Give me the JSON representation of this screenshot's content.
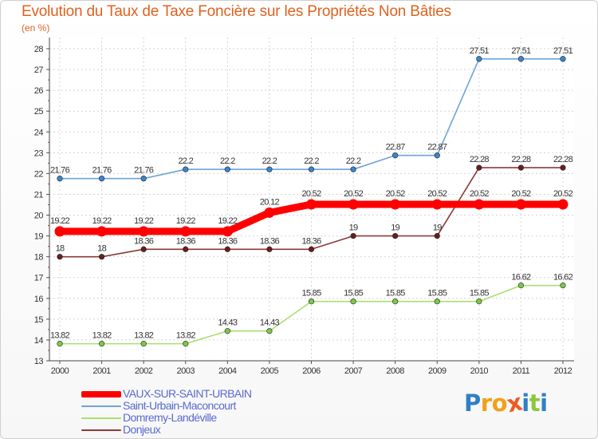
{
  "title": "Evolution du Taux de Taxe Foncière sur les Propriétés Non Bâties",
  "unit": "(en %)",
  "logo": {
    "letters": [
      "P",
      "r",
      "o",
      "x",
      "i",
      "t",
      "i"
    ],
    "colors": [
      "#2f80c8",
      "#f2a01b",
      "#f2a01b",
      "#ee5a24",
      "#2f80c8",
      "#8dc63f",
      "#2f80c8"
    ]
  },
  "chart_data": {
    "type": "line",
    "title": "Evolution du Taux de Taxe Foncière sur les Propriétés Non Bâties",
    "ylabel": "(en %)",
    "xlabel": "",
    "categories": [
      "2000",
      "2001",
      "2002",
      "2003",
      "2004",
      "2005",
      "2006",
      "2007",
      "2008",
      "2009",
      "2010",
      "2011",
      "2012"
    ],
    "ylim": [
      13,
      28
    ],
    "yticks": [
      13,
      14,
      15,
      16,
      17,
      18,
      19,
      20,
      21,
      22,
      23,
      24,
      25,
      26,
      27,
      28
    ],
    "grid": true,
    "series": [
      {
        "name": "VAUX-SUR-SAINT-URBAIN",
        "color": "#ff0000",
        "values": [
          19.22,
          19.22,
          19.22,
          19.22,
          19.22,
          20.12,
          20.52,
          20.52,
          20.52,
          20.52,
          20.52,
          20.52,
          20.52
        ],
        "labels": [
          "19.22",
          "19.22",
          "19.22",
          "19.22",
          "19.22",
          "20.12",
          "20.52",
          "20.52",
          "20.52",
          "20.52",
          "20.52",
          "20.52",
          "20.52"
        ],
        "bold": true
      },
      {
        "name": "Saint-Urbain-Maconcourt",
        "color": "#6fa3d6",
        "marker": "#3a86cf",
        "values": [
          21.76,
          21.76,
          21.76,
          22.2,
          22.2,
          22.2,
          22.2,
          22.2,
          22.87,
          22.87,
          27.51,
          27.51,
          27.51
        ],
        "labels": [
          "21.76",
          "21.76",
          "21.76",
          "22.2",
          "22.2",
          "22.2",
          "22.2",
          "22.2",
          "22.87",
          "22.87",
          "27.51",
          "27.51",
          "27.51"
        ]
      },
      {
        "name": "Domremy-Landéville",
        "color": "#a8df6f",
        "marker": "#7cc84a",
        "values": [
          13.82,
          13.82,
          13.82,
          13.82,
          14.43,
          14.43,
          15.85,
          15.85,
          15.85,
          15.85,
          15.85,
          16.62,
          16.62
        ],
        "labels": [
          "13.82",
          "13.82",
          "13.82",
          "13.82",
          "14.43",
          "14.43",
          "15.85",
          "15.85",
          "15.85",
          "15.85",
          "15.85",
          "16.62",
          "16.62"
        ]
      },
      {
        "name": "Donjeux",
        "color": "#8a3a3a",
        "marker": "#6b1c1c",
        "values": [
          18,
          18,
          18.36,
          18.36,
          18.36,
          18.36,
          18.36,
          19,
          19,
          19,
          22.28,
          22.28,
          22.28
        ],
        "labels": [
          "18",
          "18",
          "18.36",
          "18.36",
          "18.36",
          "18.36",
          "18.36",
          "19",
          "19",
          "19",
          "22.28",
          "22.28",
          "22.28"
        ]
      }
    ]
  }
}
